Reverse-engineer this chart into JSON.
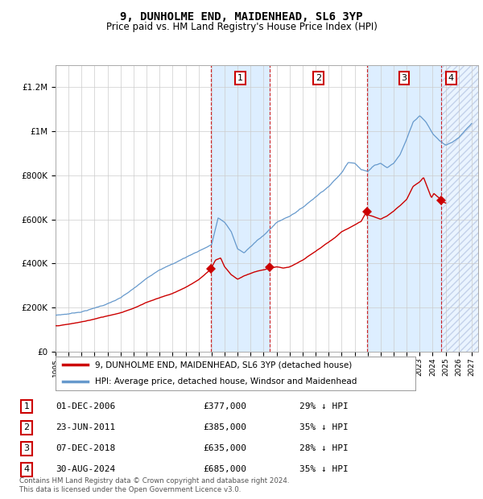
{
  "title": "9, DUNHOLME END, MAIDENHEAD, SL6 3YP",
  "subtitle": "Price paid vs. HM Land Registry's House Price Index (HPI)",
  "footer": "Contains HM Land Registry data © Crown copyright and database right 2024.\nThis data is licensed under the Open Government Licence v3.0.",
  "legend_label_red": "9, DUNHOLME END, MAIDENHEAD, SL6 3YP (detached house)",
  "legend_label_blue": "HPI: Average price, detached house, Windsor and Maidenhead",
  "table": [
    {
      "num": "1",
      "date": "01-DEC-2006",
      "price": "£377,000",
      "hpi": "29% ↓ HPI"
    },
    {
      "num": "2",
      "date": "23-JUN-2011",
      "price": "£385,000",
      "hpi": "35% ↓ HPI"
    },
    {
      "num": "3",
      "date": "07-DEC-2018",
      "price": "£635,000",
      "hpi": "28% ↓ HPI"
    },
    {
      "num": "4",
      "date": "30-AUG-2024",
      "price": "£685,000",
      "hpi": "35% ↓ HPI"
    }
  ],
  "sale_markers": [
    {
      "year": 2006.92,
      "value": 377000
    },
    {
      "year": 2011.48,
      "value": 385000
    },
    {
      "year": 2018.93,
      "value": 635000
    },
    {
      "year": 2024.67,
      "value": 685000
    }
  ],
  "vline_years": [
    2006.92,
    2011.48,
    2018.93,
    2024.67
  ],
  "shade_regions": [
    {
      "start": 2006.92,
      "end": 2011.48
    },
    {
      "start": 2018.93,
      "end": 2024.67
    }
  ],
  "hatch_region": {
    "start": 2024.67,
    "end": 2027.5
  },
  "xmin": 1995,
  "xmax": 2027.5,
  "ymin": 0,
  "ymax": 1300000,
  "color_red": "#cc0000",
  "color_blue": "#6699cc",
  "color_shade": "#ddeeff",
  "color_vline": "#cc0000",
  "background": "#ffffff",
  "hpi_control_points": [
    [
      1995.0,
      165000
    ],
    [
      1996.0,
      172000
    ],
    [
      1997.0,
      183000
    ],
    [
      1998.0,
      200000
    ],
    [
      1999.0,
      220000
    ],
    [
      2000.0,
      245000
    ],
    [
      2001.0,
      285000
    ],
    [
      2002.0,
      330000
    ],
    [
      2003.0,
      375000
    ],
    [
      2004.0,
      400000
    ],
    [
      2005.0,
      430000
    ],
    [
      2006.0,
      460000
    ],
    [
      2007.0,
      490000
    ],
    [
      2007.5,
      610000
    ],
    [
      2008.0,
      590000
    ],
    [
      2008.5,
      550000
    ],
    [
      2009.0,
      470000
    ],
    [
      2009.5,
      450000
    ],
    [
      2010.0,
      480000
    ],
    [
      2010.5,
      510000
    ],
    [
      2011.0,
      530000
    ],
    [
      2011.5,
      560000
    ],
    [
      2012.0,
      590000
    ],
    [
      2013.0,
      620000
    ],
    [
      2014.0,
      660000
    ],
    [
      2015.0,
      710000
    ],
    [
      2016.0,
      760000
    ],
    [
      2017.0,
      820000
    ],
    [
      2017.5,
      870000
    ],
    [
      2018.0,
      870000
    ],
    [
      2018.5,
      840000
    ],
    [
      2019.0,
      830000
    ],
    [
      2019.5,
      860000
    ],
    [
      2020.0,
      870000
    ],
    [
      2020.5,
      850000
    ],
    [
      2021.0,
      870000
    ],
    [
      2021.5,
      910000
    ],
    [
      2022.0,
      980000
    ],
    [
      2022.5,
      1060000
    ],
    [
      2023.0,
      1090000
    ],
    [
      2023.5,
      1060000
    ],
    [
      2024.0,
      1010000
    ],
    [
      2024.5,
      980000
    ],
    [
      2025.0,
      960000
    ],
    [
      2025.5,
      970000
    ],
    [
      2026.0,
      990000
    ],
    [
      2026.5,
      1020000
    ],
    [
      2027.0,
      1050000
    ]
  ],
  "red_control_points": [
    [
      1995.0,
      118000
    ],
    [
      1996.0,
      125000
    ],
    [
      1997.0,
      135000
    ],
    [
      1998.0,
      148000
    ],
    [
      1999.0,
      162000
    ],
    [
      2000.0,
      178000
    ],
    [
      2001.0,
      200000
    ],
    [
      2002.0,
      225000
    ],
    [
      2003.0,
      248000
    ],
    [
      2004.0,
      268000
    ],
    [
      2005.0,
      295000
    ],
    [
      2006.0,
      330000
    ],
    [
      2006.92,
      377000
    ],
    [
      2007.3,
      420000
    ],
    [
      2007.7,
      430000
    ],
    [
      2008.0,
      390000
    ],
    [
      2008.5,
      355000
    ],
    [
      2009.0,
      335000
    ],
    [
      2009.5,
      350000
    ],
    [
      2010.0,
      360000
    ],
    [
      2010.5,
      370000
    ],
    [
      2011.0,
      375000
    ],
    [
      2011.48,
      385000
    ],
    [
      2012.0,
      390000
    ],
    [
      2012.5,
      385000
    ],
    [
      2013.0,
      390000
    ],
    [
      2013.5,
      405000
    ],
    [
      2014.0,
      420000
    ],
    [
      2014.5,
      440000
    ],
    [
      2015.0,
      460000
    ],
    [
      2015.5,
      480000
    ],
    [
      2016.0,
      500000
    ],
    [
      2016.5,
      520000
    ],
    [
      2017.0,
      545000
    ],
    [
      2017.5,
      560000
    ],
    [
      2018.0,
      575000
    ],
    [
      2018.5,
      590000
    ],
    [
      2018.93,
      635000
    ],
    [
      2019.0,
      620000
    ],
    [
      2019.5,
      610000
    ],
    [
      2020.0,
      600000
    ],
    [
      2020.5,
      615000
    ],
    [
      2021.0,
      635000
    ],
    [
      2021.5,
      660000
    ],
    [
      2022.0,
      690000
    ],
    [
      2022.5,
      750000
    ],
    [
      2023.0,
      770000
    ],
    [
      2023.3,
      790000
    ],
    [
      2023.5,
      760000
    ],
    [
      2023.7,
      730000
    ],
    [
      2023.9,
      700000
    ],
    [
      2024.1,
      720000
    ],
    [
      2024.3,
      710000
    ],
    [
      2024.5,
      700000
    ],
    [
      2024.67,
      685000
    ],
    [
      2025.0,
      675000
    ]
  ]
}
